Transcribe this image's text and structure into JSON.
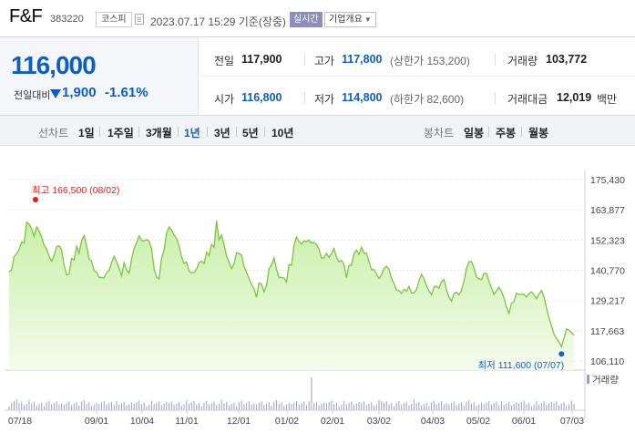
{
  "header": {
    "name": "F&F",
    "code": "383220",
    "market_badge": "코스피",
    "timestamp": "2023.07.17 15:29 기준(장중)",
    "realtime_badge": "실시간",
    "company_info": "기업개요"
  },
  "price": {
    "current": "116,000",
    "change_label": "전일대비",
    "change": "1,900",
    "change_pct": "-1.61%"
  },
  "stats": {
    "prev_close": {
      "label": "전일",
      "value": "117,900"
    },
    "high": {
      "label": "고가",
      "value": "117,800",
      "sub": "(상한가 153,200)"
    },
    "volume": {
      "label": "거래량",
      "value": "103,772"
    },
    "open": {
      "label": "시가",
      "value": "116,800"
    },
    "low": {
      "label": "저가",
      "value": "114,800",
      "sub": "(하한가 82,600)"
    },
    "amount": {
      "label": "거래대금",
      "value": "12,019",
      "unit": "백만"
    }
  },
  "period_bar": {
    "line_label": "선차트",
    "line_periods": [
      "1일",
      "1주일",
      "3개월",
      "1년",
      "3년",
      "5년",
      "10년"
    ],
    "active_period": "1년",
    "candle_label": "봉차트",
    "candle_periods": [
      "일봉",
      "주봉",
      "월봉"
    ]
  },
  "chart_data": {
    "type": "area",
    "y_ticks": [
      "175,430",
      "163,877",
      "152,323",
      "140,770",
      "129,217",
      "117,663",
      "106,110"
    ],
    "ylim": [
      106110,
      175430
    ],
    "x_ticks": [
      "07/18",
      "09/01",
      "10/04",
      "11/01",
      "12/01",
      "01/02",
      "02/01",
      "03/02",
      "04/03",
      "05/02",
      "06/01",
      "07/03"
    ],
    "high_annotation": "최고 166,500 (08/02)",
    "low_annotation": "최저 111,600 (07/07)",
    "volume_label": "거래량",
    "line_color": "#7cc53c",
    "fill_color": "#d8f4c2",
    "values": [
      140200,
      140800,
      146000,
      147100,
      148800,
      151600,
      151200,
      159100,
      158500,
      156700,
      153700,
      157300,
      155700,
      153500,
      150300,
      148900,
      146100,
      144300,
      146500,
      149800,
      150100,
      148600,
      142600,
      139000,
      139300,
      145300,
      144700,
      149900,
      147300,
      152100,
      154000,
      150300,
      145100,
      144300,
      140600,
      140000,
      138100,
      137900,
      137900,
      139800,
      140600,
      143800,
      146100,
      144100,
      141500,
      138600,
      143700,
      141000,
      139700,
      145000,
      149100,
      151300,
      153900,
      152200,
      152000,
      152500,
      152000,
      148900,
      141300,
      138100,
      137500,
      145300,
      148500,
      154900,
      157300,
      156100,
      154200,
      153000,
      150200,
      145900,
      143400,
      143900,
      140400,
      139800,
      139900,
      141200,
      143800,
      144300,
      143300,
      147700,
      146400,
      150700,
      149500,
      159800,
      152400,
      154200,
      150600,
      146200,
      143800,
      141400,
      143200,
      147500,
      147200,
      146600,
      142300,
      140000,
      137600,
      135300,
      133800,
      130400,
      136000,
      135400,
      132600,
      135000,
      141500,
      142800,
      145500,
      141300,
      137900,
      138100,
      137800,
      136300,
      143000,
      142700,
      150300,
      153500,
      151800,
      150800,
      152100,
      151700,
      152300,
      151200,
      151500,
      150600,
      148800,
      145400,
      145600,
      147300,
      145700,
      147200,
      149100,
      145600,
      144000,
      144500,
      143000,
      137900,
      142600,
      142800,
      147300,
      148500,
      146800,
      149600,
      147300,
      147300,
      144200,
      141000,
      141000,
      139400,
      137600,
      139200,
      141500,
      142300,
      141200,
      137700,
      135700,
      133200,
      133000,
      131900,
      133500,
      132800,
      134600,
      132200,
      132100,
      133400,
      136800,
      139200,
      137600,
      134800,
      132900,
      131400,
      134400,
      134700,
      133900,
      136400,
      137200,
      133400,
      130600,
      129000,
      131900,
      132400,
      131400,
      133000,
      136600,
      141500,
      144000,
      144200,
      141600,
      138200,
      137500,
      137200,
      139600,
      139600,
      136600,
      134000,
      131500,
      132900,
      134300,
      132700,
      130200,
      126700,
      124300,
      128100,
      128800,
      132000,
      131500,
      131600,
      131600,
      130500,
      131800,
      132600,
      131400,
      129900,
      131700,
      133100,
      130700,
      126400,
      122600,
      119600,
      116300,
      114700,
      113400,
      111600,
      114800,
      118300,
      117900,
      116900,
      116000
    ]
  }
}
